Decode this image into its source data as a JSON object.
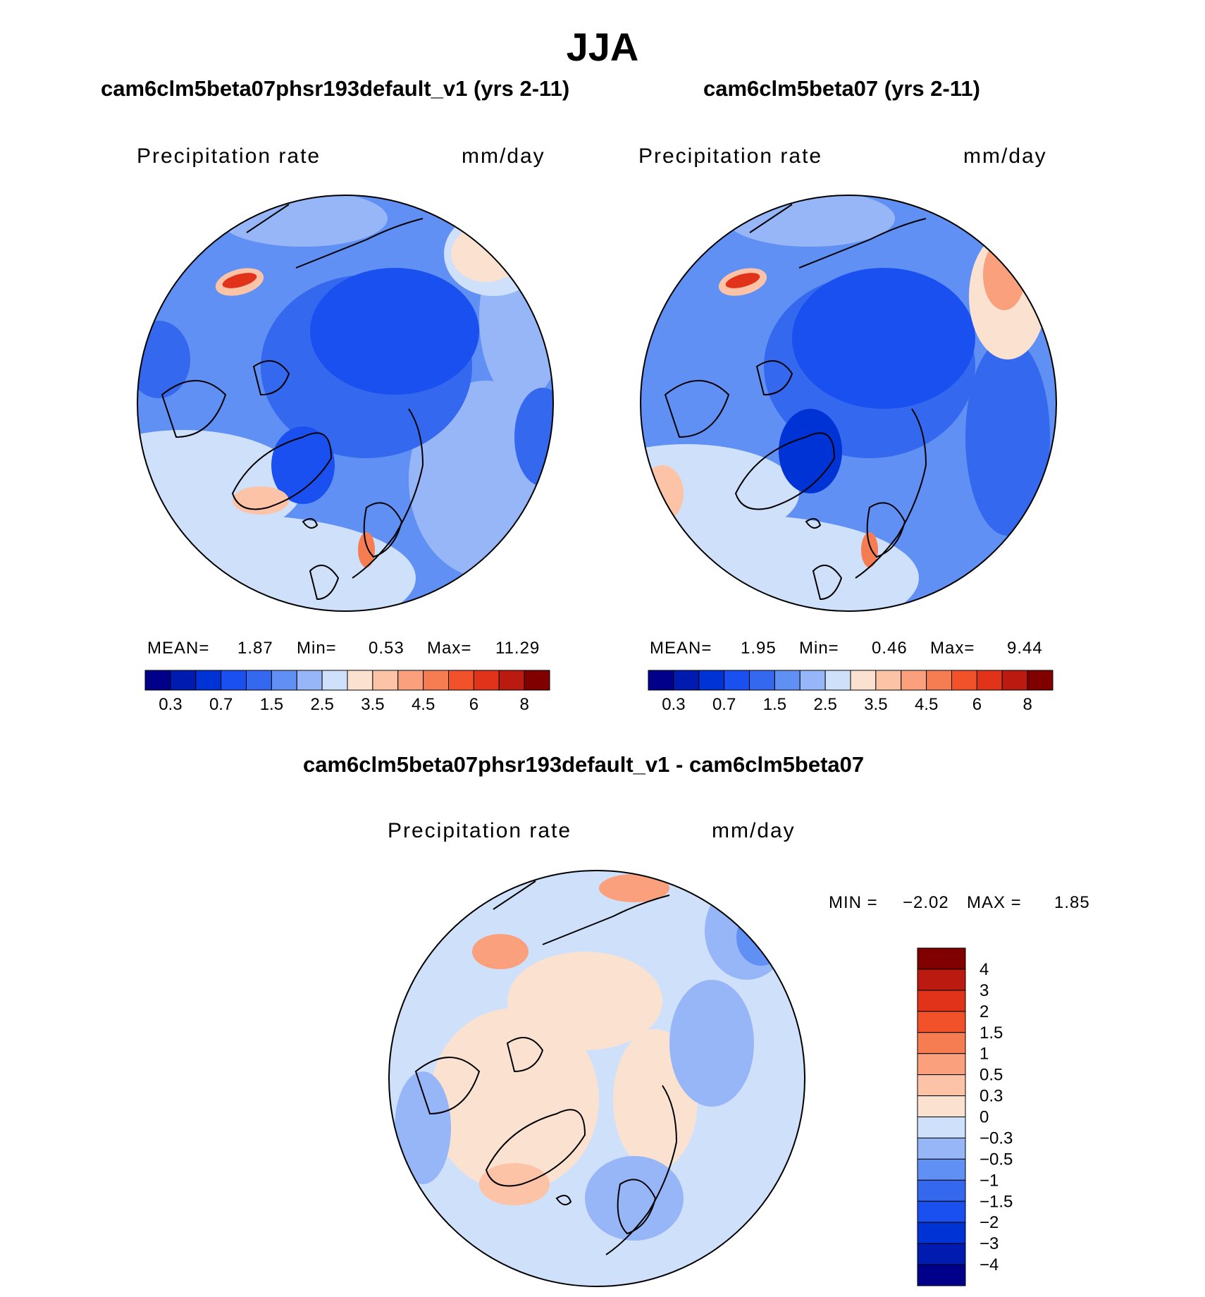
{
  "season_title": "JJA",
  "panels": [
    {
      "id": "case",
      "title": "cam6clm5beta07phsr193default_v1 (yrs 2-11)",
      "variable_label": "Precipitation rate",
      "units": "mm/day",
      "stats": {
        "mean_label": "MEAN=",
        "mean": "1.87",
        "min_label": "Min=",
        "min": "0.53",
        "max_label": "Max=",
        "max": "11.29"
      }
    },
    {
      "id": "control",
      "title": "cam6clm5beta07 (yrs 2-11)",
      "variable_label": "Precipitation rate",
      "units": "mm/day",
      "stats": {
        "mean_label": "MEAN=",
        "mean": "1.95",
        "min_label": "Min=",
        "min": "0.46",
        "max_label": "Max=",
        "max": "9.44"
      }
    },
    {
      "id": "difference",
      "title": "cam6clm5beta07phsr193default_v1 - cam6clm5beta07",
      "variable_label": "Precipitation rate",
      "units": "mm/day",
      "stats": {
        "min_label": "MIN =",
        "min": "−2.02",
        "max_label": "MAX =",
        "max": "1.85"
      }
    }
  ],
  "chart_data": [
    {
      "type": "heatmap",
      "projection": "north-polar-stereographic",
      "title": "cam6clm5beta07phsr193default_v1 (yrs 2-11)",
      "variable": "Precipitation rate",
      "units": "mm/day",
      "mean": 1.87,
      "min": 0.53,
      "max": 11.29,
      "colorbar_ticks": [
        "0.3",
        "0.7",
        "1.5",
        "2.5",
        "3.5",
        "4.5",
        "6",
        "8"
      ],
      "colorbar_levels": [
        0.2,
        0.3,
        0.5,
        0.7,
        1,
        1.5,
        2,
        2.5,
        3,
        3.5,
        4,
        4.5,
        5,
        6,
        7,
        8
      ],
      "colorbar_colors": [
        "#00008a",
        "#001cb0",
        "#0033d6",
        "#1a4ff0",
        "#3468ee",
        "#6090f4",
        "#97b6f8",
        "#cfe0fb",
        "#fbe2d0",
        "#fcc3a6",
        "#fba07c",
        "#f67c52",
        "#f2522a",
        "#e1331a",
        "#bb1a10",
        "#800000"
      ]
    },
    {
      "type": "heatmap",
      "projection": "north-polar-stereographic",
      "title": "cam6clm5beta07 (yrs 2-11)",
      "variable": "Precipitation rate",
      "units": "mm/day",
      "mean": 1.95,
      "min": 0.46,
      "max": 9.44,
      "colorbar_ticks": [
        "0.3",
        "0.7",
        "1.5",
        "2.5",
        "3.5",
        "4.5",
        "6",
        "8"
      ],
      "colorbar_levels": [
        0.2,
        0.3,
        0.5,
        0.7,
        1,
        1.5,
        2,
        2.5,
        3,
        3.5,
        4,
        4.5,
        5,
        6,
        7,
        8
      ],
      "colorbar_colors": [
        "#00008a",
        "#001cb0",
        "#0033d6",
        "#1a4ff0",
        "#3468ee",
        "#6090f4",
        "#97b6f8",
        "#cfe0fb",
        "#fbe2d0",
        "#fcc3a6",
        "#fba07c",
        "#f67c52",
        "#f2522a",
        "#e1331a",
        "#bb1a10",
        "#800000"
      ]
    },
    {
      "type": "heatmap",
      "projection": "north-polar-stereographic",
      "title": "cam6clm5beta07phsr193default_v1 - cam6clm5beta07",
      "variable": "Precipitation rate",
      "units": "mm/day",
      "min": -2.02,
      "max": 1.85,
      "colorbar_ticks": [
        "4",
        "3",
        "2",
        "1.5",
        "1",
        "0.5",
        "0.3",
        "0",
        "−0.3",
        "−0.5",
        "−1",
        "−1.5",
        "−2",
        "−3",
        "−4"
      ],
      "colorbar_colors": [
        "#800000",
        "#bb1a10",
        "#e1331a",
        "#f2522a",
        "#f67c52",
        "#fba07c",
        "#fcc3a6",
        "#fbe2d0",
        "#cfe0fb",
        "#97b6f8",
        "#6090f4",
        "#3468ee",
        "#1a4ff0",
        "#0033d6",
        "#001cb0",
        "#00008a"
      ]
    }
  ]
}
